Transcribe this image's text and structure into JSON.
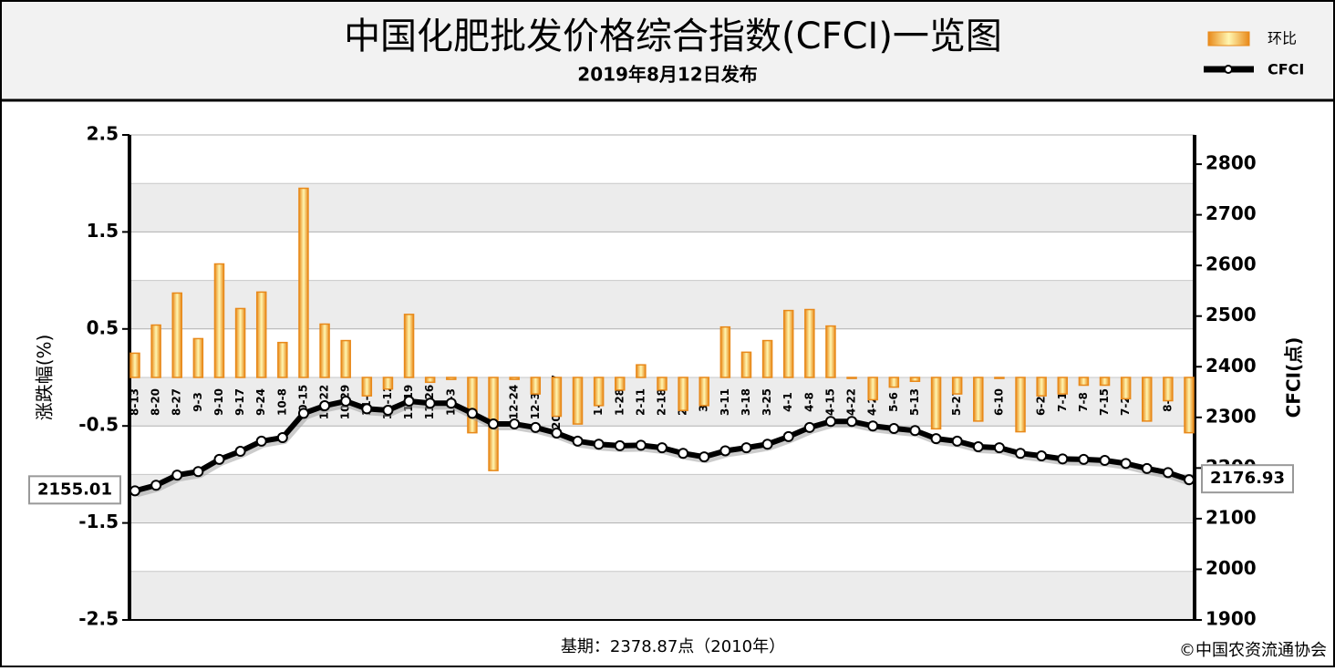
{
  "chart_data": {
    "type": "bar-line",
    "title": "中国化肥批发价格综合指数(CFCI)一览图",
    "subtitle": "2019年8月12日发布",
    "y_label": "涨跌幅(%)",
    "y2_label": "CFCI(点)",
    "footnote": "基期：2378.87点（2010年）",
    "source": "©中国农资流通协会",
    "categories": [
      "8-13",
      "8-20",
      "8-27",
      "9-3",
      "9-10",
      "9-17",
      "9-24",
      "10-8",
      "10-15",
      "10-22",
      "10-29",
      "11-5",
      "11-12",
      "11-19",
      "11-26",
      "12-3",
      "12-10",
      "12-17",
      "12-24",
      "12-31",
      "2019-1-7",
      "1-14",
      "1-21",
      "1-28",
      "2-11",
      "2-18",
      "2-25",
      "3-4",
      "3-11",
      "3-18",
      "3-25",
      "4-1",
      "4-8",
      "4-15",
      "4-22",
      "4-29",
      "5-6",
      "5-13",
      "5-20",
      "5-27",
      "6-3",
      "6-10",
      "6-17",
      "6-24",
      "7-1",
      "7-8",
      "7-15",
      "7-22",
      "7-29",
      "8-5",
      "8-12"
    ],
    "series": [
      {
        "name": "环比",
        "type": "bar",
        "color": "#e8891a",
        "values": [
          0.25,
          0.54,
          0.87,
          0.4,
          1.17,
          0.71,
          0.88,
          0.36,
          1.95,
          0.55,
          0.38,
          -0.19,
          -0.12,
          0.65,
          -0.05,
          -0.02,
          -0.57,
          -0.96,
          -0.02,
          -0.17,
          -0.4,
          -0.48,
          -0.29,
          -0.13,
          0.13,
          -0.13,
          -0.34,
          -0.29,
          0.52,
          0.26,
          0.38,
          0.69,
          0.7,
          0.53,
          -0.01,
          -0.23,
          -0.1,
          -0.04,
          -0.53,
          -0.17,
          -0.45,
          -0.01,
          -0.56,
          -0.19,
          -0.17,
          -0.08,
          -0.08,
          -0.22,
          -0.45,
          -0.24,
          -0.57
        ]
      },
      {
        "name": "CFCI",
        "type": "line",
        "axis": "y2",
        "color": "#000000",
        "values": [
          2155.01,
          2166,
          2186,
          2193,
          2217,
          2233,
          2253,
          2260,
          2308,
          2323,
          2332,
          2317,
          2314,
          2332,
          2328,
          2328,
          2308,
          2287,
          2287,
          2280,
          2269,
          2253,
          2247,
          2244,
          2245,
          2240,
          2229,
          2222,
          2234,
          2240,
          2247,
          2262,
          2280,
          2292,
          2292,
          2283,
          2278,
          2274,
          2258,
          2253,
          2242,
          2240,
          2229,
          2224,
          2218,
          2217,
          2215,
          2209,
          2199,
          2191,
          2176.93
        ]
      }
    ],
    "ylim": [
      -2.5,
      2.5
    ],
    "yticks": [
      2.5,
      1.5,
      0.5,
      -0.5,
      -1.5,
      -2.5
    ],
    "y2lim": [
      1900,
      2857.74
    ],
    "y2ticks": [
      1900,
      2000,
      2100,
      2200,
      2300,
      2400,
      2500,
      2600,
      2700,
      2800
    ],
    "grid": true
  }
}
